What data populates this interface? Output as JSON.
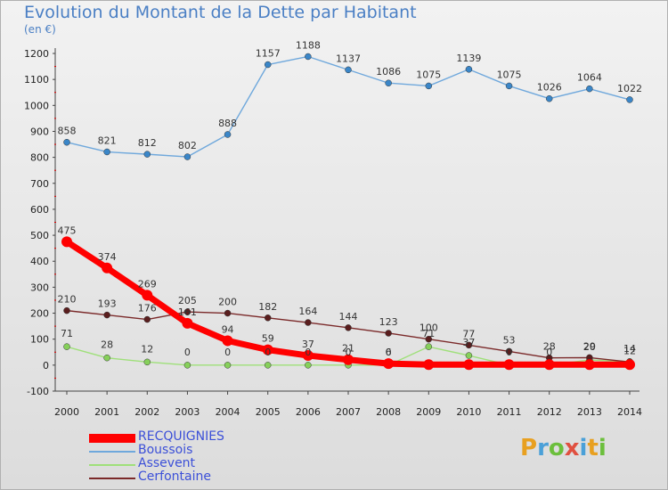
{
  "title": "Evolution du Montant de la Dette par Habitant",
  "subtitle": "(en €)",
  "logo": "Proxiti",
  "chart_data": {
    "type": "line",
    "title": "Evolution du Montant de la Dette par Habitant",
    "subtitle": "(en €)",
    "x": [
      2000,
      2001,
      2002,
      2003,
      2004,
      2005,
      2006,
      2007,
      2008,
      2009,
      2010,
      2011,
      2012,
      2013,
      2014
    ],
    "ylim": [
      -100,
      1200
    ],
    "yticks": [
      -100,
      0,
      100,
      200,
      300,
      400,
      500,
      600,
      700,
      800,
      900,
      1000,
      1100,
      1200
    ],
    "grid": false,
    "legend_position": "bottom-left",
    "series": [
      {
        "name": "RECQUIGNIES",
        "color": "#ff0000",
        "values": [
          475,
          374,
          269,
          161,
          94,
          59,
          37,
          21,
          6,
          2,
          2,
          2,
          2,
          2,
          2
        ],
        "labels": [
          "475",
          "374",
          "269",
          "161",
          "94",
          "59",
          "37",
          "21",
          "6",
          "",
          "",
          "",
          "",
          "",
          ""
        ]
      },
      {
        "name": "Boussois",
        "color": "#6fa8dc",
        "values": [
          858,
          821,
          812,
          802,
          888,
          1157,
          1188,
          1137,
          1086,
          1075,
          1139,
          1075,
          1026,
          1064,
          1022
        ],
        "labels": [
          "858",
          "821",
          "812",
          "802",
          "888",
          "1157",
          "1188",
          "1137",
          "1086",
          "1075",
          "1139",
          "1075",
          "1026",
          "1064",
          "1022"
        ]
      },
      {
        "name": "Assevent",
        "color": "#9fe07a",
        "values": [
          71,
          28,
          12,
          0,
          0,
          0,
          0,
          0,
          0,
          71,
          37,
          0,
          0,
          20,
          14
        ],
        "labels": [
          "71",
          "28",
          "12",
          "0",
          "0",
          "0",
          "0",
          "0",
          "0",
          "71",
          "37",
          "0",
          "0",
          "20",
          "14"
        ]
      },
      {
        "name": "Cerfontaine",
        "color": "#7b2a2a",
        "values": [
          210,
          193,
          176,
          205,
          200,
          182,
          164,
          144,
          123,
          100,
          77,
          53,
          28,
          29,
          12
        ],
        "labels": [
          "210",
          "193",
          "176",
          "205",
          "200",
          "182",
          "164",
          "144",
          "123",
          "100",
          "77",
          "53",
          "28",
          "29",
          "12"
        ]
      }
    ]
  }
}
